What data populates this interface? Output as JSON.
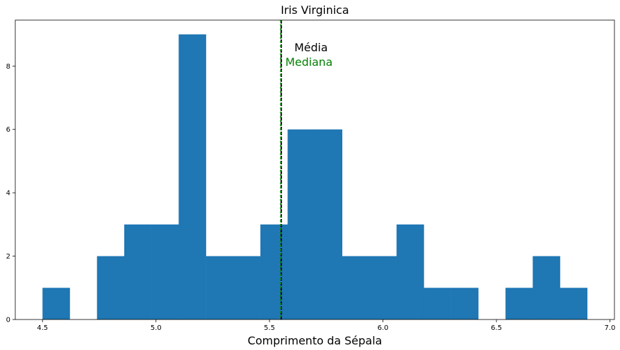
{
  "chart_data": {
    "type": "bar",
    "title": "Iris Virginica",
    "xlabel": "Comprimento da Sépala",
    "ylabel": "",
    "xlim": [
      4.38,
      7.02
    ],
    "ylim": [
      0,
      9.45
    ],
    "bin_start": 4.5,
    "bin_width": 0.12,
    "counts": [
      1,
      0,
      2,
      3,
      3,
      9,
      2,
      2,
      3,
      6,
      6,
      2,
      2,
      3,
      1,
      1,
      0,
      1,
      2,
      1
    ],
    "bar_color": "#1f77b4",
    "x_ticks": [
      4.5,
      5.0,
      5.5,
      6.0,
      6.5,
      7.0
    ],
    "x_tick_labels": [
      "4.5",
      "5.0",
      "5.5",
      "6.0",
      "6.5",
      "7.0"
    ],
    "y_ticks": [
      0,
      2,
      4,
      6,
      8
    ],
    "y_tick_labels": [
      "0",
      "2",
      "4",
      "6",
      "8"
    ],
    "mean": 5.552,
    "median": 5.55,
    "mean_color": "#000000",
    "median_color": "#008000",
    "annotations": {
      "mean_label": "Média",
      "median_label": "Mediana"
    },
    "grid": false
  }
}
